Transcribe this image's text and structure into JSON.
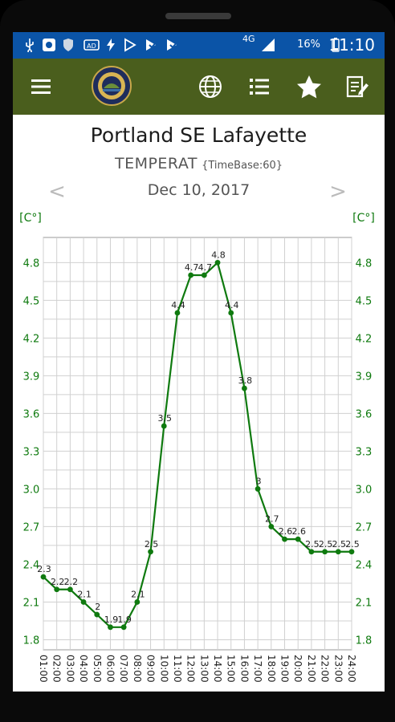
{
  "status_bar": {
    "time": "11:10",
    "battery": "16%",
    "network": "4G",
    "icons": [
      "usb-icon",
      "app-icon",
      "shield-icon",
      "ad-icon",
      "flash-icon",
      "play-icon",
      "play-check-icon",
      "play-check-icon-2"
    ]
  },
  "app_bar": {
    "icons": [
      "menu-icon",
      "state-seal-logo",
      "globe-icon",
      "list-icon",
      "star-icon",
      "edit-note-icon"
    ],
    "color": "#4a5e1d"
  },
  "station": {
    "name": "Portland SE Lafayette",
    "parameter": "TEMPERAT",
    "timebase": "{TimeBase:60}"
  },
  "date_nav": {
    "date": "Dec 10, 2017",
    "prev": "<",
    "next": ">"
  },
  "chart_data": {
    "type": "line",
    "y_unit_left": "[C°]",
    "y_unit_right": "[C°]",
    "categories": [
      "01:00",
      "02:00",
      "03:00",
      "04:00",
      "05:00",
      "06:00",
      "07:00",
      "08:00",
      "09:00",
      "10:00",
      "11:00",
      "12:00",
      "13:00",
      "14:00",
      "15:00",
      "16:00",
      "17:00",
      "18:00",
      "19:00",
      "20:00",
      "21:00",
      "22:00",
      "23:00",
      "24:00"
    ],
    "values": [
      2.3,
      2.2,
      2.2,
      2.1,
      2.0,
      1.9,
      1.9,
      2.1,
      2.5,
      3.5,
      4.4,
      4.7,
      4.7,
      4.8,
      4.4,
      3.8,
      3.0,
      2.7,
      2.6,
      2.6,
      2.5,
      2.5,
      2.5,
      2.5
    ],
    "point_labels": [
      "2.3",
      "2.2",
      "2.2",
      "2.1",
      "2",
      "1.9",
      "1.9",
      "2.1",
      "2.5",
      "3.5",
      "4.4",
      "4.7",
      "4.7",
      "4.8",
      "4.4",
      "3.8",
      "3",
      "2.7",
      "2.6",
      "2.6",
      "2.5",
      "2.5",
      "2.5",
      "2.5"
    ],
    "y_ticks": [
      "1.8",
      "2.1",
      "2.4",
      "2.7",
      "3.0",
      "3.3",
      "3.6",
      "3.9",
      "4.2",
      "4.5",
      "4.8"
    ],
    "ylim": [
      1.72,
      5.0
    ],
    "grid": true,
    "line_color": "#0f7a0f",
    "axis_label_color": "#0f7a0f"
  }
}
